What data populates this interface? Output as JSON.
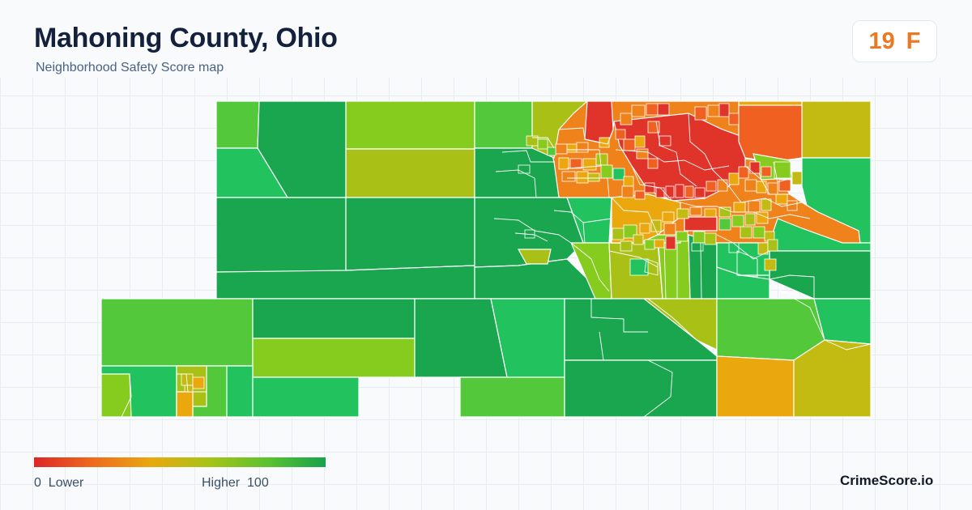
{
  "header": {
    "title": "Mahoning County, Ohio",
    "subtitle": "Neighborhood Safety Score map"
  },
  "score": {
    "value": "19",
    "grade": "F",
    "color": "#ee7722"
  },
  "legend": {
    "min_label": "0  Lower",
    "max_label": "Higher  100",
    "range": [
      0,
      100
    ],
    "gradient": [
      "#dc2626",
      "#ef6a1e",
      "#e9a80f",
      "#a7c317",
      "#5cc22f",
      "#16a34a"
    ]
  },
  "brand": "CrimeScore.io",
  "map_data": {
    "type": "choropleth",
    "metric": "Neighborhood Safety Score",
    "palette": {
      "green_dark": "#1aa64e",
      "green": "#22c35e",
      "green_light": "#52c83a",
      "lime": "#86cc1f",
      "lime_yellow": "#a9c117",
      "olive": "#c3ba12",
      "amber": "#eba80e",
      "orange": "#f0821b",
      "orange_red": "#f06020",
      "red": "#e0342a"
    }
  }
}
